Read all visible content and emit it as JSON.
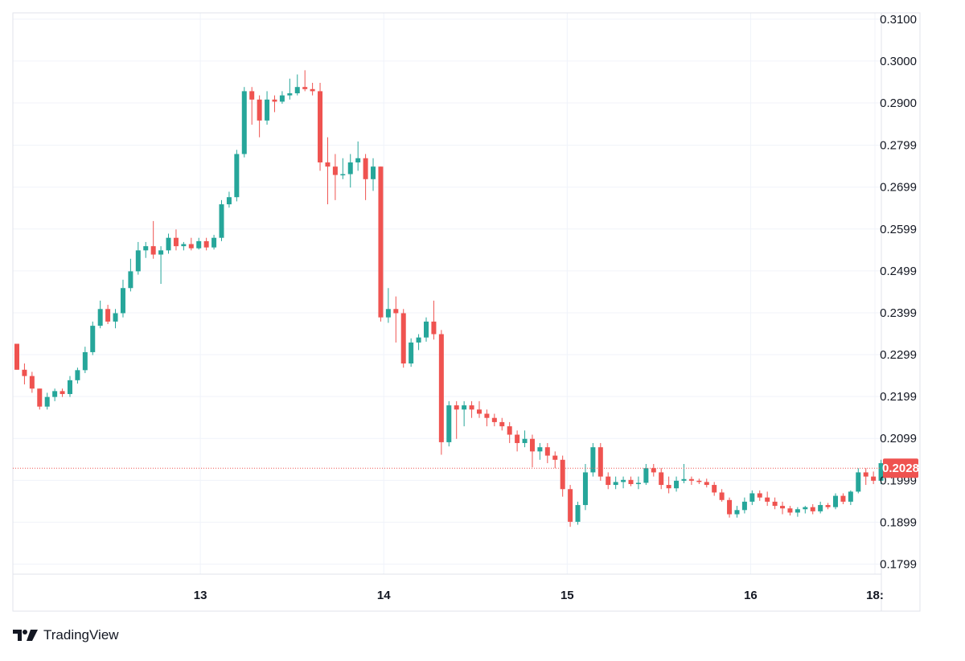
{
  "chart_data": {
    "type": "candlestick",
    "title": "",
    "xlabel": "",
    "ylabel": "",
    "ylim": [
      0.1775,
      0.3115
    ],
    "x_ticks": [
      {
        "label": "13",
        "index": 24.2
      },
      {
        "label": "14",
        "index": 48.4
      },
      {
        "label": "15",
        "index": 72.6
      },
      {
        "label": "16",
        "index": 96.8
      },
      {
        "label": "18:",
        "index": 113.2
      }
    ],
    "y_ticks": [
      "0.1799",
      "0.1899",
      "0.1999",
      "0.2099",
      "0.2199",
      "0.2299",
      "0.2399",
      "0.2499",
      "0.2599",
      "0.2699",
      "0.2799",
      "0.2900",
      "0.3000",
      "0.3100"
    ],
    "last_price": 0.2028,
    "last_price_label": "0.2028",
    "colors": {
      "up": "#26a69a",
      "down": "#ef5350",
      "grid": "#f0f3fa",
      "text": "#131722"
    },
    "candles": [
      [
        0.2325,
        0.2325,
        0.2263,
        0.2263
      ],
      [
        0.2263,
        0.2278,
        0.2228,
        0.2248
      ],
      [
        0.2248,
        0.2258,
        0.2208,
        0.2218
      ],
      [
        0.2218,
        0.2218,
        0.2168,
        0.2175
      ],
      [
        0.2175,
        0.2208,
        0.2168,
        0.2198
      ],
      [
        0.2198,
        0.2218,
        0.2188,
        0.2212
      ],
      [
        0.2212,
        0.2218,
        0.2198,
        0.2205
      ],
      [
        0.2205,
        0.2248,
        0.2198,
        0.2238
      ],
      [
        0.2238,
        0.2268,
        0.223,
        0.2262
      ],
      [
        0.2262,
        0.2318,
        0.2255,
        0.2305
      ],
      [
        0.2305,
        0.2378,
        0.2298,
        0.2368
      ],
      [
        0.2368,
        0.2428,
        0.2362,
        0.2408
      ],
      [
        0.2408,
        0.2418,
        0.2372,
        0.2378
      ],
      [
        0.2378,
        0.2408,
        0.2362,
        0.2398
      ],
      [
        0.2398,
        0.2478,
        0.2388,
        0.2458
      ],
      [
        0.2458,
        0.2528,
        0.245,
        0.2498
      ],
      [
        0.2498,
        0.2568,
        0.249,
        0.2548
      ],
      [
        0.2548,
        0.2568,
        0.253,
        0.2558
      ],
      [
        0.2558,
        0.2618,
        0.2528,
        0.2538
      ],
      [
        0.2538,
        0.2558,
        0.2468,
        0.2548
      ],
      [
        0.2548,
        0.2588,
        0.254,
        0.2578
      ],
      [
        0.2578,
        0.2598,
        0.2548,
        0.2558
      ],
      [
        0.2558,
        0.2568,
        0.2548,
        0.2563
      ],
      [
        0.2563,
        0.2578,
        0.2548,
        0.2553
      ],
      [
        0.2553,
        0.2578,
        0.255,
        0.257
      ],
      [
        0.257,
        0.2578,
        0.2548,
        0.2555
      ],
      [
        0.2555,
        0.2585,
        0.255,
        0.2578
      ],
      [
        0.2578,
        0.2668,
        0.257,
        0.2658
      ],
      [
        0.2658,
        0.2688,
        0.265,
        0.2675
      ],
      [
        0.2675,
        0.2788,
        0.2665,
        0.2778
      ],
      [
        0.2778,
        0.2938,
        0.277,
        0.2928
      ],
      [
        0.2928,
        0.2938,
        0.2848,
        0.2908
      ],
      [
        0.2908,
        0.2918,
        0.2818,
        0.2858
      ],
      [
        0.2858,
        0.2928,
        0.2848,
        0.2908
      ],
      [
        0.2908,
        0.2918,
        0.2878,
        0.2903
      ],
      [
        0.2903,
        0.2928,
        0.2898,
        0.2918
      ],
      [
        0.2918,
        0.2958,
        0.2908,
        0.2923
      ],
      [
        0.2923,
        0.2968,
        0.2918,
        0.2938
      ],
      [
        0.2938,
        0.2978,
        0.2928,
        0.2933
      ],
      [
        0.2933,
        0.2948,
        0.2918,
        0.2928
      ],
      [
        0.2928,
        0.2948,
        0.2738,
        0.2758
      ],
      [
        0.2758,
        0.2818,
        0.2658,
        0.2748
      ],
      [
        0.2748,
        0.2778,
        0.2668,
        0.2728
      ],
      [
        0.2728,
        0.2768,
        0.2718,
        0.273
      ],
      [
        0.273,
        0.2778,
        0.2698,
        0.2758
      ],
      [
        0.2758,
        0.2808,
        0.2738,
        0.2768
      ],
      [
        0.2768,
        0.2778,
        0.2668,
        0.2718
      ],
      [
        0.2718,
        0.2768,
        0.269,
        0.2748
      ],
      [
        0.2748,
        0.2748,
        0.2378,
        0.2388
      ],
      [
        0.2388,
        0.2458,
        0.2375,
        0.2408
      ],
      [
        0.2408,
        0.2438,
        0.2328,
        0.2398
      ],
      [
        0.2398,
        0.2408,
        0.2268,
        0.2278
      ],
      [
        0.2278,
        0.2338,
        0.227,
        0.2328
      ],
      [
        0.2328,
        0.2348,
        0.231,
        0.234
      ],
      [
        0.234,
        0.2388,
        0.233,
        0.2378
      ],
      [
        0.2378,
        0.2428,
        0.2335,
        0.2348
      ],
      [
        0.2348,
        0.2358,
        0.206,
        0.209
      ],
      [
        0.209,
        0.2188,
        0.208,
        0.2178
      ],
      [
        0.2178,
        0.2188,
        0.2098,
        0.2168
      ],
      [
        0.2168,
        0.2188,
        0.2128,
        0.2178
      ],
      [
        0.2178,
        0.2188,
        0.2148,
        0.2168
      ],
      [
        0.2168,
        0.2188,
        0.2148,
        0.2158
      ],
      [
        0.2158,
        0.2168,
        0.2128,
        0.2148
      ],
      [
        0.2148,
        0.2158,
        0.2128,
        0.2138
      ],
      [
        0.2138,
        0.2148,
        0.2118,
        0.2128
      ],
      [
        0.2128,
        0.2138,
        0.2088,
        0.2108
      ],
      [
        0.2108,
        0.2118,
        0.2068,
        0.2088
      ],
      [
        0.2088,
        0.2118,
        0.2078,
        0.2098
      ],
      [
        0.2098,
        0.2108,
        0.203,
        0.2068
      ],
      [
        0.2068,
        0.2088,
        0.2048,
        0.2078
      ],
      [
        0.2078,
        0.2088,
        0.204,
        0.2058
      ],
      [
        0.2058,
        0.2068,
        0.2028,
        0.2048
      ],
      [
        0.2048,
        0.2058,
        0.196,
        0.1978
      ],
      [
        0.1978,
        0.1988,
        0.1888,
        0.19
      ],
      [
        0.19,
        0.1948,
        0.1893,
        0.194
      ],
      [
        0.194,
        0.2038,
        0.1928,
        0.2018
      ],
      [
        0.2018,
        0.2088,
        0.2008,
        0.2078
      ],
      [
        0.2078,
        0.2088,
        0.1998,
        0.2008
      ],
      [
        0.2008,
        0.2018,
        0.1978,
        0.1988
      ],
      [
        0.1988,
        0.2008,
        0.1978,
        0.1995
      ],
      [
        0.1995,
        0.2008,
        0.198,
        0.2
      ],
      [
        0.2,
        0.2008,
        0.1985,
        0.199
      ],
      [
        0.199,
        0.2008,
        0.1978,
        0.1993
      ],
      [
        0.1993,
        0.2038,
        0.1988,
        0.2028
      ],
      [
        0.2028,
        0.2038,
        0.2008,
        0.2018
      ],
      [
        0.2018,
        0.2028,
        0.1978,
        0.1988
      ],
      [
        0.1988,
        0.2008,
        0.1968,
        0.198
      ],
      [
        0.198,
        0.2008,
        0.1972,
        0.1998
      ],
      [
        0.1998,
        0.2038,
        0.1992,
        0.2002
      ],
      [
        0.2002,
        0.2008,
        0.1988,
        0.1998
      ],
      [
        0.1998,
        0.2003,
        0.199,
        0.1995
      ],
      [
        0.1995,
        0.2003,
        0.1982,
        0.1988
      ],
      [
        0.1988,
        0.1995,
        0.1962,
        0.197
      ],
      [
        0.197,
        0.1978,
        0.1948,
        0.1952
      ],
      [
        0.1952,
        0.1958,
        0.191,
        0.1918
      ],
      [
        0.1918,
        0.1938,
        0.191,
        0.1928
      ],
      [
        0.1928,
        0.1958,
        0.192,
        0.1948
      ],
      [
        0.1948,
        0.1975,
        0.194,
        0.1968
      ],
      [
        0.1968,
        0.1975,
        0.195,
        0.1958
      ],
      [
        0.1958,
        0.1972,
        0.1938,
        0.1948
      ],
      [
        0.1948,
        0.1958,
        0.193,
        0.1938
      ],
      [
        0.1938,
        0.1948,
        0.1918,
        0.1932
      ],
      [
        0.1932,
        0.1938,
        0.1915,
        0.1922
      ],
      [
        0.1922,
        0.1935,
        0.1912,
        0.193
      ],
      [
        0.193,
        0.1938,
        0.192,
        0.1935
      ],
      [
        0.1935,
        0.1942,
        0.1918,
        0.1925
      ],
      [
        0.1925,
        0.1948,
        0.192,
        0.194
      ],
      [
        0.194,
        0.1945,
        0.193,
        0.1935
      ],
      [
        0.1935,
        0.1968,
        0.193,
        0.1962
      ],
      [
        0.1962,
        0.1968,
        0.1942,
        0.1948
      ],
      [
        0.1948,
        0.1975,
        0.194,
        0.1972
      ],
      [
        0.1972,
        0.2028,
        0.1968,
        0.2018
      ],
      [
        0.2018,
        0.2028,
        0.1988,
        0.2008
      ],
      [
        0.2008,
        0.202,
        0.199,
        0.1998
      ],
      [
        0.1998,
        0.2048,
        0.199,
        0.204
      ],
      [
        0.204,
        0.2042,
        0.2022,
        0.2028
      ]
    ]
  },
  "brand": {
    "name": "TradingView"
  }
}
